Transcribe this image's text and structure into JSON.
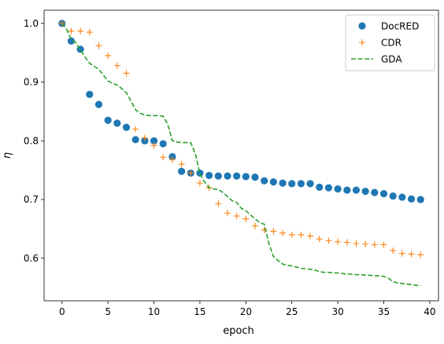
{
  "chart_data": {
    "type": "line",
    "title": "",
    "xlabel": "epoch",
    "ylabel": "η",
    "xlim": [
      -1.95,
      40.95
    ],
    "ylim": [
      0.5275,
      1.0225
    ],
    "xticks": [
      0,
      5,
      10,
      15,
      20,
      25,
      30,
      35,
      40
    ],
    "xtick_labels": [
      "0",
      "5",
      "10",
      "15",
      "20",
      "25",
      "30",
      "35",
      "40"
    ],
    "yticks": [
      0.6,
      0.7,
      0.8,
      0.9,
      1.0
    ],
    "ytick_labels": [
      "0.6",
      "0.7",
      "0.8",
      "0.9",
      "1.0"
    ],
    "grid": false,
    "legend_position": "top-right",
    "series": [
      {
        "name": "DocRED",
        "style": "markers-circle",
        "color": "#1f77b4",
        "x": [
          0,
          1,
          2,
          3,
          4,
          5,
          6,
          7,
          8,
          9,
          10,
          11,
          12,
          13,
          14,
          15,
          16,
          17,
          18,
          19,
          20,
          21,
          22,
          23,
          24,
          25,
          26,
          27,
          28,
          29,
          30,
          31,
          32,
          33,
          34,
          35,
          36,
          37,
          38,
          39
        ],
        "y": [
          1.0,
          0.97,
          0.956,
          0.879,
          0.862,
          0.835,
          0.83,
          0.823,
          0.802,
          0.8,
          0.8,
          0.795,
          0.773,
          0.748,
          0.745,
          0.745,
          0.741,
          0.74,
          0.74,
          0.74,
          0.739,
          0.738,
          0.732,
          0.73,
          0.728,
          0.727,
          0.727,
          0.727,
          0.721,
          0.72,
          0.718,
          0.716,
          0.716,
          0.714,
          0.712,
          0.71,
          0.706,
          0.704,
          0.701,
          0.7
        ]
      },
      {
        "name": "CDR",
        "style": "markers-plus",
        "color": "#ff7f0e",
        "x": [
          0,
          1,
          2,
          3,
          4,
          5,
          6,
          7,
          8,
          9,
          10,
          11,
          12,
          13,
          14,
          15,
          16,
          17,
          18,
          19,
          20,
          21,
          22,
          23,
          24,
          25,
          26,
          27,
          28,
          29,
          30,
          31,
          32,
          33,
          34,
          35,
          36,
          37,
          38,
          39
        ],
        "y": [
          1.0,
          0.987,
          0.987,
          0.985,
          0.962,
          0.945,
          0.928,
          0.915,
          0.82,
          0.805,
          0.792,
          0.772,
          0.768,
          0.76,
          0.745,
          0.728,
          0.72,
          0.693,
          0.677,
          0.672,
          0.667,
          0.655,
          0.648,
          0.646,
          0.643,
          0.64,
          0.64,
          0.638,
          0.633,
          0.63,
          0.628,
          0.627,
          0.625,
          0.624,
          0.623,
          0.623,
          0.613,
          0.608,
          0.607,
          0.606
        ]
      },
      {
        "name": "GDA",
        "style": "dashed-line",
        "color": "#2ca02c",
        "x": [
          0,
          0.5,
          1,
          1.5,
          2,
          2.5,
          3,
          3.5,
          4,
          4.5,
          5,
          5.5,
          6,
          6.5,
          7,
          7.5,
          8,
          8.5,
          9,
          9.5,
          10,
          10.5,
          11,
          11.5,
          12,
          12.5,
          13,
          13.5,
          14,
          14.5,
          15,
          15.5,
          16,
          16.5,
          17,
          17.5,
          18,
          18.5,
          19,
          19.5,
          20,
          20.5,
          21,
          21.5,
          22,
          22.5,
          23,
          23.5,
          24,
          24.5,
          25,
          25.5,
          26,
          26.5,
          27,
          27.5,
          28,
          28.5,
          29,
          29.5,
          30,
          30.5,
          31,
          31.5,
          32,
          32.5,
          33,
          33.5,
          34,
          34.5,
          35,
          35.5,
          36,
          36.5,
          37,
          37.5,
          38,
          38.5,
          39
        ],
        "y": [
          1.0,
          0.99,
          0.973,
          0.967,
          0.955,
          0.943,
          0.932,
          0.927,
          0.922,
          0.912,
          0.902,
          0.898,
          0.895,
          0.889,
          0.882,
          0.868,
          0.853,
          0.847,
          0.844,
          0.843,
          0.843,
          0.843,
          0.842,
          0.828,
          0.8,
          0.798,
          0.797,
          0.797,
          0.797,
          0.778,
          0.744,
          0.73,
          0.72,
          0.718,
          0.717,
          0.712,
          0.705,
          0.698,
          0.695,
          0.685,
          0.681,
          0.674,
          0.667,
          0.661,
          0.658,
          0.625,
          0.603,
          0.596,
          0.59,
          0.588,
          0.587,
          0.585,
          0.583,
          0.582,
          0.581,
          0.58,
          0.577,
          0.576,
          0.576,
          0.575,
          0.575,
          0.574,
          0.573,
          0.573,
          0.572,
          0.572,
          0.571,
          0.571,
          0.57,
          0.57,
          0.569,
          0.566,
          0.56,
          0.558,
          0.557,
          0.556,
          0.555,
          0.554,
          0.553
        ]
      }
    ]
  }
}
